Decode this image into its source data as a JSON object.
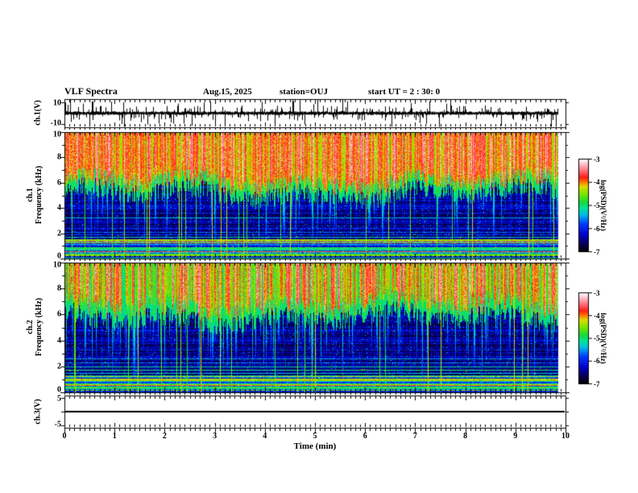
{
  "header": {
    "title": "VLF Spectra",
    "date": "Aug.15, 2025",
    "station": "station=OUJ",
    "start_ut": "start UT =  2 : 30: 0"
  },
  "time_axis": {
    "label": "Time (min)",
    "ticks": [
      0,
      1,
      2,
      3,
      4,
      5,
      6,
      7,
      8,
      9,
      10
    ],
    "minor_step": 0.1,
    "min": 0,
    "max": 10
  },
  "colorbar": {
    "label": "log(PSD)(V²/Hz)",
    "ticks": [
      -3,
      -4,
      -5,
      -6,
      -7
    ],
    "min": -7,
    "max": -3,
    "stops": [
      [
        0,
        "#000000"
      ],
      [
        0.08,
        "#0a0050"
      ],
      [
        0.18,
        "#0000c8"
      ],
      [
        0.3,
        "#003cff"
      ],
      [
        0.4,
        "#00bee6"
      ],
      [
        0.47,
        "#00e696"
      ],
      [
        0.53,
        "#14dc3c"
      ],
      [
        0.62,
        "#78e600"
      ],
      [
        0.7,
        "#dcdc00"
      ],
      [
        0.75,
        "#ff7800"
      ],
      [
        0.8,
        "#ff1e14"
      ],
      [
        0.88,
        "#ff7882"
      ],
      [
        0.95,
        "#ffc8d2"
      ],
      [
        1,
        "#ffffff"
      ]
    ]
  },
  "chart_data": [
    {
      "id": "ch1-waveform",
      "type": "line",
      "ylabel": "ch.1(V)",
      "yticks": [
        10,
        -10
      ],
      "ylim": [
        -13,
        13
      ],
      "xlim": [
        0,
        10
      ],
      "description": "broadband noise of about ±1.5 V with dense impulsive spikes reaching ±10 V over the full 10 minutes",
      "seed": 20250815
    },
    {
      "id": "ch1-spectrogram",
      "type": "heatmap",
      "ylabel_line1": "ch.1",
      "ylabel_line2": "Frequency (kHz)",
      "yticks": [
        0,
        2,
        4,
        6,
        8,
        10
      ],
      "yticks_minor": [
        1,
        3,
        5,
        7,
        9
      ],
      "ylim": [
        0,
        10
      ],
      "xlim": [
        0,
        10
      ],
      "zlabel": "log(PSD)(V²/Hz)",
      "zlim": [
        -7,
        -3
      ],
      "description": "high PSD (red/orange, ~-4) above ~5.5 kHz, green transition band, low PSD (blue/black, ~-6.5) below 5 kHz with cyan speckle, vertical sferic streaks, narrow horizontal interference lines below 4 kHz and dense multicolour banding below 1.5 kHz",
      "render": {
        "seed": 12345,
        "top_val": -3.9,
        "low_val": -6.45,
        "boundary_khz": 5.5,
        "finger_prob": 0.11,
        "glitch_prob": 0.032,
        "band_top_khz": 1.55,
        "phase": 0.7,
        "hot_var": 0.6,
        "lines": [
          {
            "f": 4.2,
            "v": -6.1
          },
          {
            "f": 3.6,
            "v": -6.15
          },
          {
            "f": 3.25,
            "v": -5.4
          },
          {
            "f": 2.4,
            "v": -6.0
          },
          {
            "f": 2.1,
            "v": -5.7
          },
          {
            "f": 1.9,
            "v": -5.9
          },
          {
            "f": 1.7,
            "v": -5.3
          }
        ]
      }
    },
    {
      "id": "ch2-spectrogram",
      "type": "heatmap",
      "ylabel_line1": "ch.2",
      "ylabel_line2": "Frequency (kHz)",
      "yticks": [
        0,
        2,
        4,
        6,
        8,
        10
      ],
      "yticks_minor": [
        1,
        3,
        5,
        7,
        9
      ],
      "ylim": [
        0,
        10
      ],
      "xlim": [
        0,
        10
      ],
      "zlabel": "log(PSD)(V²/Hz)",
      "zlim": [
        -7,
        -3
      ],
      "description": "similar to ch.1 but yellow-green dominated above ~6 kHz with red streaks, deep green sferic fingers reaching 2-4 kHz, blue low-frequency region with cyan/yellow horizontal lines near 1.5-2.6 kHz and dense banding below 1.3 kHz",
      "render": {
        "seed": 54321,
        "top_val": -4.25,
        "low_val": -6.45,
        "boundary_khz": 6.1,
        "finger_prob": 0.2,
        "glitch_prob": 0.045,
        "band_top_khz": 1.35,
        "phase": 2.1,
        "hot_var": 0.85,
        "lines": [
          {
            "f": 4.0,
            "v": -6.15
          },
          {
            "f": 3.3,
            "v": -6.0
          },
          {
            "f": 2.6,
            "v": -5.5
          },
          {
            "f": 2.3,
            "v": -5.65
          },
          {
            "f": 2.0,
            "v": -5.2
          },
          {
            "f": 1.75,
            "v": -4.9
          },
          {
            "f": 1.5,
            "v": -5.3
          }
        ]
      }
    },
    {
      "id": "ch3-waveform",
      "type": "line",
      "ylabel": "ch.3(V)",
      "yticks": [
        5,
        -5
      ],
      "ylim": [
        -6,
        6
      ],
      "xlim": [
        0,
        10
      ],
      "values": "constant 0",
      "description": "flat line at 0 V for the full record"
    }
  ]
}
